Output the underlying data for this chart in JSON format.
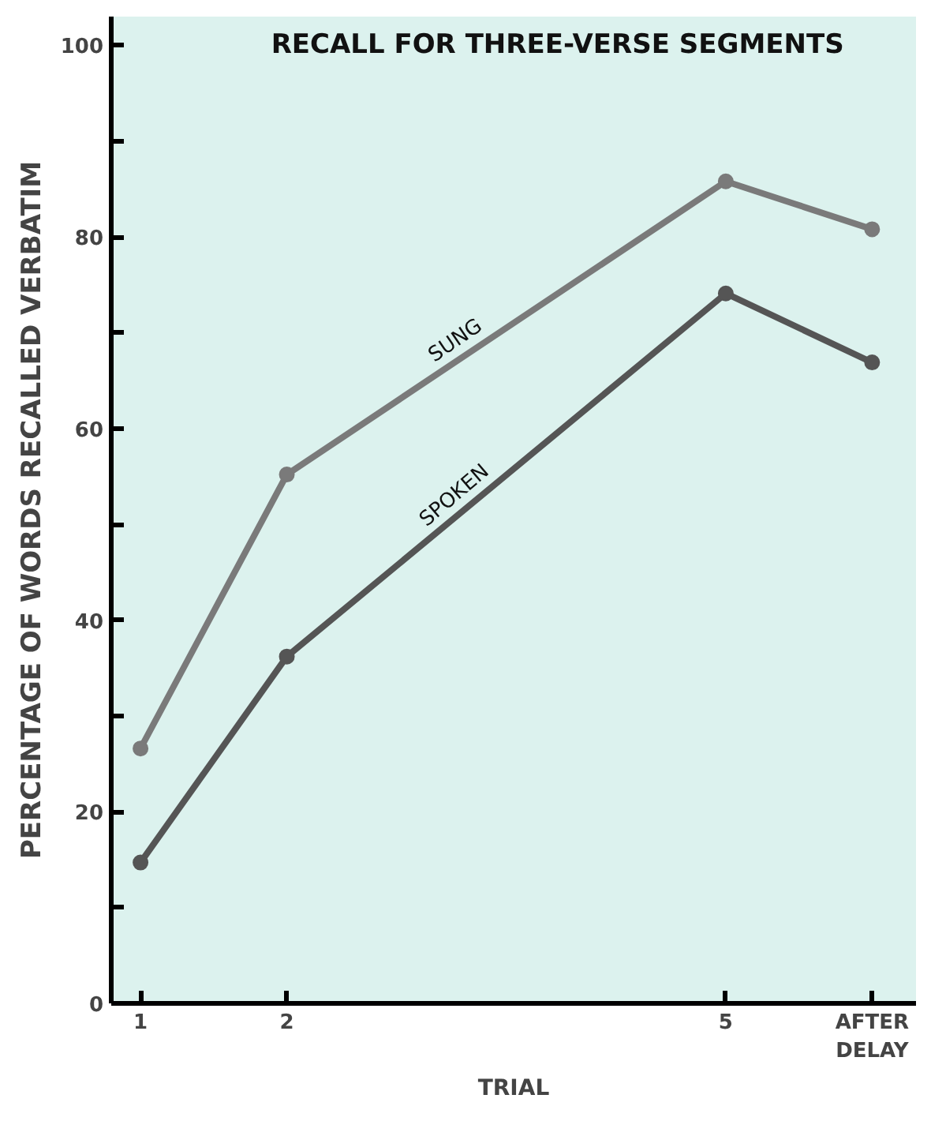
{
  "chart_data": {
    "type": "line",
    "title": "RECALL FOR THREE-VERSE SEGMENTS",
    "xlabel": "TRIAL",
    "ylabel": "PERCENTAGE OF WORDS RECALLED VERBATIM",
    "x": [
      1,
      2,
      5,
      6
    ],
    "series": [
      {
        "name": "SUNG",
        "color": "#7a7a7a",
        "values": [
          26.6,
          55.2,
          85.8,
          80.8
        ]
      },
      {
        "name": "SPOKEN",
        "color": "#555555",
        "values": [
          14.7,
          36.2,
          74.1,
          66.9
        ]
      }
    ],
    "xlim": [
      0.8,
      6.3
    ],
    "ylim": [
      0,
      103
    ],
    "xticks": [
      1,
      2,
      5,
      {
        "value": 6,
        "label": "AFTER\nDELAY"
      }
    ],
    "yticks": [
      0,
      {
        "value": 10,
        "label": null
      },
      20,
      {
        "value": 30,
        "label": null
      },
      40,
      {
        "value": 50,
        "label": null
      },
      60,
      {
        "value": 70,
        "label": null
      },
      80,
      {
        "value": 90,
        "label": null
      },
      100
    ],
    "grid": false,
    "marker": "circle",
    "line_style": "solid"
  }
}
